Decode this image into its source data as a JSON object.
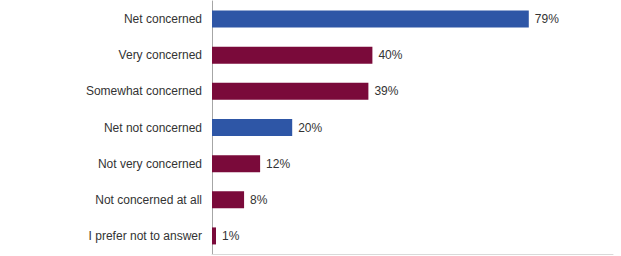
{
  "chart_data": {
    "type": "bar",
    "orientation": "horizontal",
    "categories": [
      "Net concerned",
      "Very concerned",
      "Somewhat concerned",
      "Net not concerned",
      "Not very concerned",
      "Not concerned at all",
      "I prefer not to answer"
    ],
    "values": [
      79,
      40,
      39,
      20,
      12,
      8,
      1
    ],
    "value_labels": [
      "79%",
      "40%",
      "39%",
      "20%",
      "12%",
      "8%",
      "1%"
    ],
    "colors": [
      "#2e56a6",
      "#7a0a3a",
      "#7a0a3a",
      "#2e56a6",
      "#7a0a3a",
      "#7a0a3a",
      "#7a0a3a"
    ],
    "xlim": [
      0,
      100
    ],
    "xticks": [],
    "data_labels": true,
    "tick_labels": "y",
    "grid": false
  }
}
